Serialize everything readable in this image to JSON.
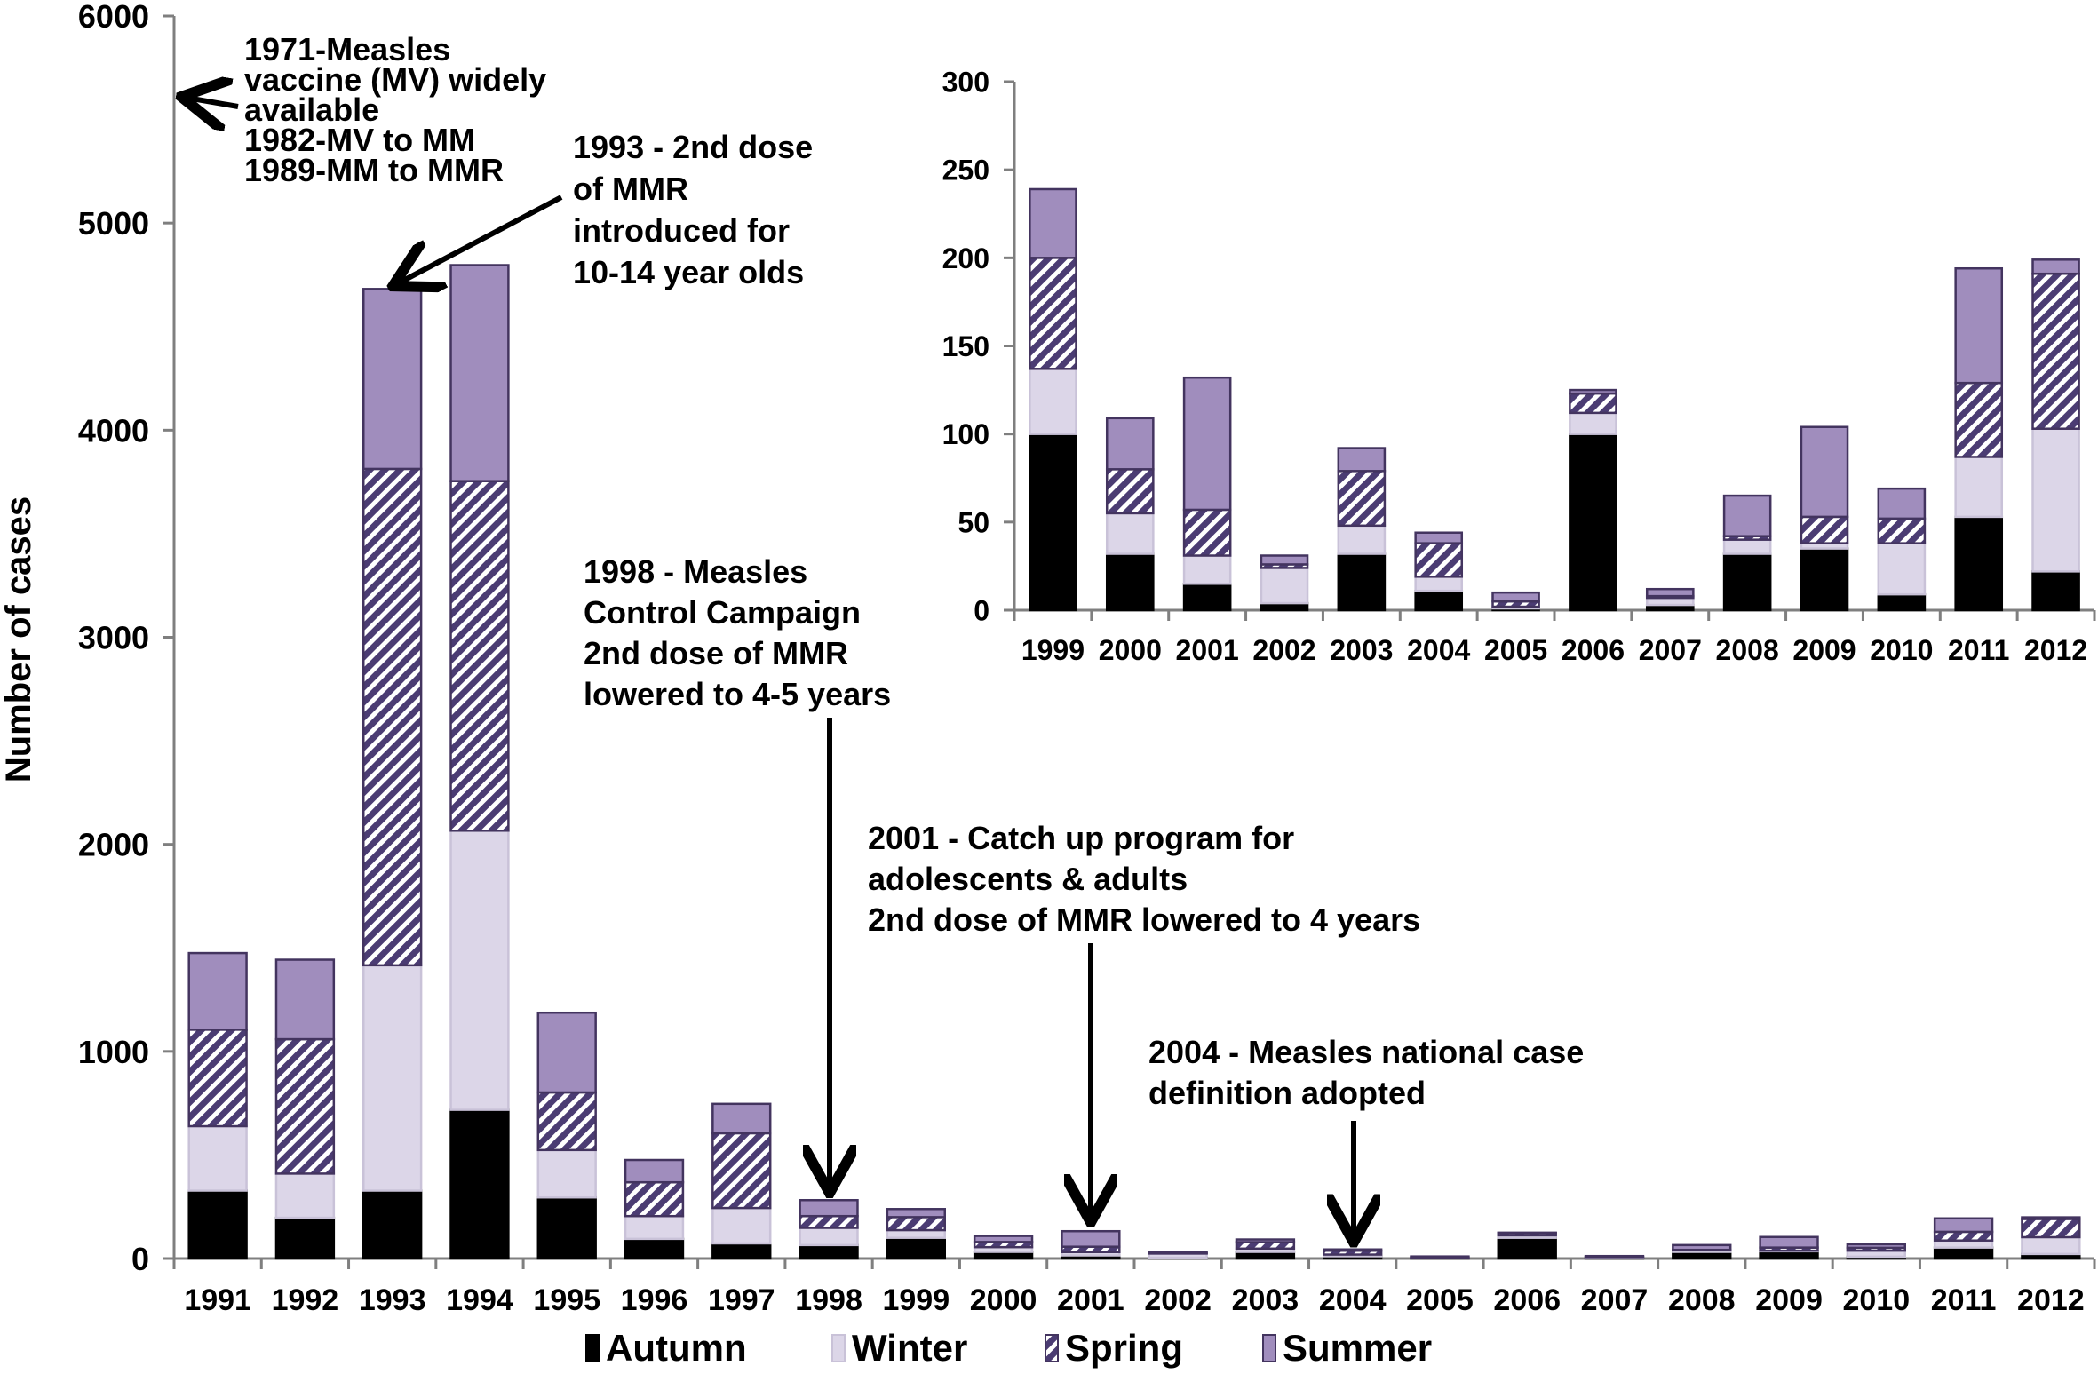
{
  "chart_data": [
    {
      "id": "main",
      "type": "bar",
      "stacked": true,
      "title": "",
      "xlabel": "",
      "ylabel": "Number of cases",
      "ylim": [
        0,
        6000
      ],
      "yticks": [
        0,
        1000,
        2000,
        3000,
        4000,
        5000,
        6000
      ],
      "grid": false,
      "categories": [
        "1991",
        "1992",
        "1993",
        "1994",
        "1995",
        "1996",
        "1997",
        "1998",
        "1999",
        "2000",
        "2001",
        "2002",
        "2003",
        "2004",
        "2005",
        "2006",
        "2007",
        "2008",
        "2009",
        "2010",
        "2011",
        "2012"
      ],
      "series": [
        {
          "name": "Autumn",
          "values": [
            328,
            197,
            328,
            718,
            295,
            95,
            73,
            65,
            100,
            32,
            15,
            4,
            32,
            11,
            1,
            100,
            3,
            32,
            35,
            9,
            53,
            22
          ]
        },
        {
          "name": "Winter",
          "values": [
            311,
            213,
            1088,
            1348,
            229,
            110,
            171,
            83,
            37,
            23,
            16,
            20,
            16,
            8,
            1,
            12,
            4,
            8,
            3,
            29,
            34,
            81
          ]
        },
        {
          "name": "Spring",
          "values": [
            466,
            649,
            2397,
            1688,
            278,
            163,
            361,
            57,
            63,
            25,
            26,
            2,
            31,
            19,
            3,
            11,
            1,
            2,
            15,
            14,
            42,
            88
          ]
        },
        {
          "name": "Summer",
          "values": [
            370,
            384,
            869,
            1043,
            385,
            108,
            142,
            77,
            39,
            29,
            75,
            5,
            13,
            6,
            5,
            2,
            4,
            23,
            51,
            17,
            65,
            8
          ]
        }
      ],
      "legend": {
        "position": "bottom",
        "entries": [
          "Autumn",
          "Winter",
          "Spring",
          "Summer"
        ]
      },
      "annotations": [
        {
          "id": "ann-1971",
          "lines": [
            "1971-Measles",
            "vaccine (MV) widely",
            "available",
            "1982-MV to MM",
            "1989-MM to MMR"
          ],
          "arrow_to": "y-axis"
        },
        {
          "id": "ann-1993",
          "lines": [
            "1993 - 2nd dose",
            "of MMR",
            "introduced for",
            "10-14 year olds"
          ],
          "arrow_to": "1993"
        },
        {
          "id": "ann-1998",
          "lines": [
            "1998 - Measles",
            "Control Campaign",
            "2nd dose of MMR",
            "lowered to 4-5 years"
          ],
          "arrow_to": "1998"
        },
        {
          "id": "ann-2001",
          "lines": [
            "2001 - Catch up program for",
            "adolescents & adults",
            "2nd dose of MMR lowered to 4 years"
          ],
          "arrow_to": "2001"
        },
        {
          "id": "ann-2004",
          "lines": [
            "2004 - Measles national case",
            "definition adopted"
          ],
          "arrow_to": "2004"
        }
      ]
    },
    {
      "id": "inset",
      "type": "bar",
      "stacked": true,
      "title": "",
      "xlabel": "",
      "ylabel": "",
      "ylim": [
        0,
        300
      ],
      "yticks": [
        0,
        50,
        100,
        150,
        200,
        250,
        300
      ],
      "grid": false,
      "categories": [
        "1999",
        "2000",
        "2001",
        "2002",
        "2003",
        "2004",
        "2005",
        "2006",
        "2007",
        "2008",
        "2009",
        "2010",
        "2011",
        "2012"
      ],
      "series": [
        {
          "name": "Autumn",
          "values": [
            100,
            32,
            15,
            4,
            32,
            11,
            1,
            100,
            3,
            32,
            35,
            9,
            53,
            22
          ]
        },
        {
          "name": "Winter",
          "values": [
            37,
            23,
            16,
            20,
            16,
            8,
            1,
            12,
            4,
            8,
            3,
            29,
            34,
            81
          ]
        },
        {
          "name": "Spring",
          "values": [
            63,
            25,
            26,
            2,
            31,
            19,
            3,
            11,
            1,
            2,
            15,
            14,
            42,
            88
          ]
        },
        {
          "name": "Summer",
          "values": [
            39,
            29,
            75,
            5,
            13,
            6,
            5,
            2,
            4,
            23,
            51,
            17,
            65,
            8
          ]
        }
      ]
    }
  ],
  "colors": {
    "Autumn": "#000000",
    "Winter": "#dcd6e8",
    "Spring": "#4b3c73",
    "Summer": "#a08dbd",
    "outline": "#43345f",
    "axis": "#7f7f7f"
  }
}
